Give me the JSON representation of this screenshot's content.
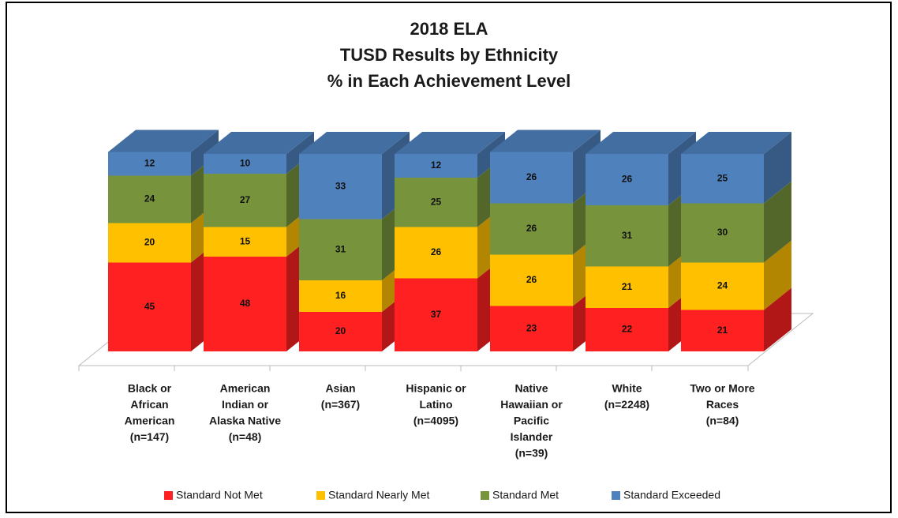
{
  "chart_data": {
    "type": "bar3d_stacked",
    "title": [
      "2018 ELA",
      "TUSD Results by Ethnicity",
      "% in Each Achievement Level"
    ],
    "categories": [
      [
        "Black or",
        "African",
        "American",
        "(n=147)"
      ],
      [
        "American",
        "Indian or",
        "Alaska Native",
        "(n=48)"
      ],
      [
        "Asian",
        "(n=367)"
      ],
      [
        "Hispanic or",
        "Latino",
        "(n=4095)"
      ],
      [
        "Native",
        "Hawaiian or",
        "Pacific",
        "Islander",
        "(n=39)"
      ],
      [
        "White",
        "(n=2248)"
      ],
      [
        "Two or More",
        "Races",
        "(n=84)"
      ]
    ],
    "series": [
      {
        "name": "Standard Not Met",
        "color": "#ff2121",
        "values": [
          45,
          48,
          20,
          37,
          23,
          22,
          21
        ]
      },
      {
        "name": "Standard Nearly Met",
        "color": "#ffc000",
        "values": [
          20,
          15,
          16,
          26,
          26,
          21,
          24
        ]
      },
      {
        "name": "Standard Met",
        "color": "#77933c",
        "values": [
          24,
          27,
          31,
          25,
          26,
          31,
          30
        ]
      },
      {
        "name": "Standard Exceeded",
        "color": "#4f81bd",
        "values": [
          12,
          10,
          33,
          12,
          26,
          26,
          25
        ]
      }
    ],
    "legend": "bottom"
  }
}
